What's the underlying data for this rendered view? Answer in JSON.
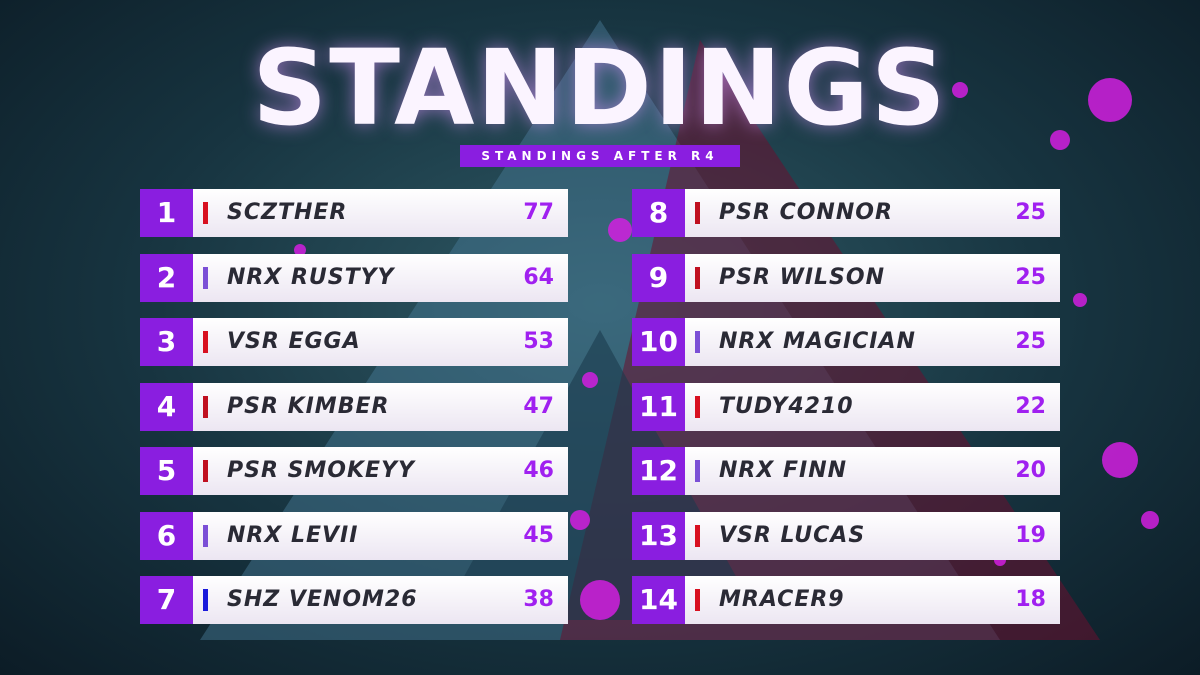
{
  "header": {
    "title": "STANDINGS",
    "subtitle": "STANDINGS AFTER R4"
  },
  "table": {
    "rows": [
      {
        "rank": 1,
        "name": "SCZTHER",
        "points": 77,
        "color": "#d81020"
      },
      {
        "rank": 2,
        "name": "NRX RUSTYY",
        "points": 64,
        "color": "#7b4fd6"
      },
      {
        "rank": 3,
        "name": "VSR EGGA",
        "points": 53,
        "color": "#d81020"
      },
      {
        "rank": 4,
        "name": "PSR KIMBER",
        "points": 47,
        "color": "#c01020"
      },
      {
        "rank": 5,
        "name": "PSR SMOKEYY",
        "points": 46,
        "color": "#c01020"
      },
      {
        "rank": 6,
        "name": "NRX LEVII",
        "points": 45,
        "color": "#7b4fd6"
      },
      {
        "rank": 7,
        "name": "SHZ VENOM26",
        "points": 38,
        "color": "#1a1adb"
      },
      {
        "rank": 8,
        "name": "PSR CONNOR",
        "points": 25,
        "color": "#c01020"
      },
      {
        "rank": 9,
        "name": "PSR WILSON",
        "points": 25,
        "color": "#c01020"
      },
      {
        "rank": 10,
        "name": "NRX MAGICIAN",
        "points": 25,
        "color": "#7b4fd6"
      },
      {
        "rank": 11,
        "name": "TUDY4210",
        "points": 22,
        "color": "#d81020"
      },
      {
        "rank": 12,
        "name": "NRX FINN",
        "points": 20,
        "color": "#7b4fd6"
      },
      {
        "rank": 13,
        "name": "VSR LUCAS",
        "points": 19,
        "color": "#d81020"
      },
      {
        "rank": 14,
        "name": "MRACER9",
        "points": 18,
        "color": "#d81020"
      }
    ]
  }
}
